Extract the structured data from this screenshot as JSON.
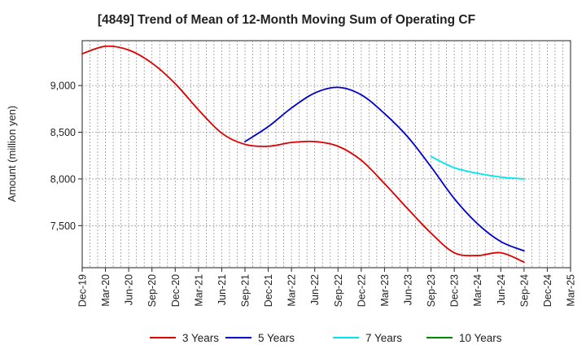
{
  "chart_data": {
    "type": "line",
    "title": "[4849]  Trend of Mean of 12-Month Moving Sum of Operating CF",
    "xlabel": "",
    "ylabel": "Amount (million yen)",
    "ylim": [
      7050,
      9480
    ],
    "yticks": [
      7500,
      8000,
      8500,
      9000
    ],
    "ytick_labels": [
      "7,500",
      "8,000",
      "8,500",
      "9,000"
    ],
    "categories": [
      "Dec-19",
      "Mar-20",
      "Jun-20",
      "Sep-20",
      "Dec-20",
      "Mar-21",
      "Jun-21",
      "Sep-21",
      "Dec-21",
      "Mar-22",
      "Jun-22",
      "Sep-22",
      "Dec-22",
      "Mar-23",
      "Jun-23",
      "Sep-23",
      "Dec-23",
      "Mar-24",
      "Jun-24",
      "Sep-24",
      "Dec-24",
      "Mar-25"
    ],
    "grid": true,
    "legend_position": "bottom",
    "series": [
      {
        "name": "3 Years",
        "color": "#dd0000",
        "values": [
          9340,
          9420,
          9380,
          9240,
          9020,
          8740,
          8490,
          8370,
          8350,
          8390,
          8400,
          8350,
          8200,
          7950,
          7680,
          7420,
          7210,
          7180,
          7210,
          7110,
          null,
          null
        ]
      },
      {
        "name": "5 Years",
        "color": "#0000cc",
        "values": [
          null,
          null,
          null,
          null,
          null,
          null,
          null,
          8400,
          8560,
          8760,
          8920,
          8980,
          8900,
          8700,
          8450,
          8130,
          7790,
          7520,
          7330,
          7230,
          null,
          null
        ]
      },
      {
        "name": "7 Years",
        "color": "#00e5ee",
        "values": [
          null,
          null,
          null,
          null,
          null,
          null,
          null,
          null,
          null,
          null,
          null,
          null,
          null,
          null,
          null,
          8240,
          8120,
          8060,
          8020,
          8000,
          null,
          null
        ]
      },
      {
        "name": "10 Years",
        "color": "#008800",
        "values": [
          null,
          null,
          null,
          null,
          null,
          null,
          null,
          null,
          null,
          null,
          null,
          null,
          null,
          null,
          null,
          null,
          null,
          null,
          null,
          null,
          null,
          null
        ]
      }
    ]
  }
}
